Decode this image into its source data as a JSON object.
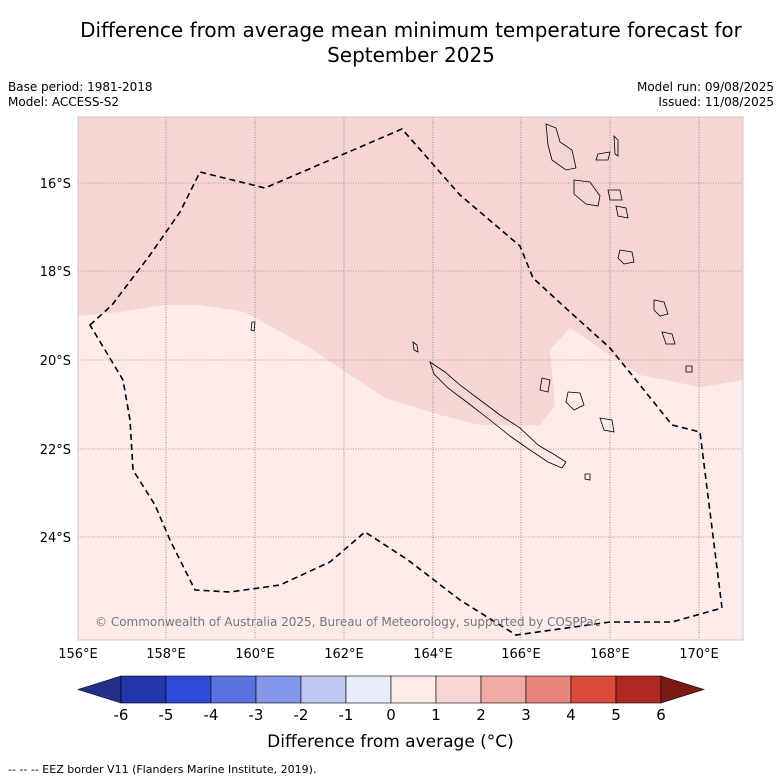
{
  "title": "Difference from average mean minimum temperature forecast for September 2025",
  "base_period": "Base period: 1981-2018",
  "model": "Model: ACCESS-S2",
  "model_run": "Model run: 09/08/2025",
  "issued": "Issued: 11/08/2025",
  "copyright": "© Commonwealth of Australia 2025, Bureau of Meteorology, supported by COSPPac",
  "map": {
    "lon_labels": [
      "156°E",
      "158°E",
      "160°E",
      "162°E",
      "164°E",
      "166°E",
      "168°E",
      "170°E"
    ],
    "lat_labels": [
      "16°S",
      "18°S",
      "20°S",
      "22°S",
      "24°S"
    ]
  },
  "colorbar": {
    "label": "Difference from average (°C)",
    "ticks": [
      "-6",
      "-5",
      "-4",
      "-3",
      "-2",
      "-1",
      "0",
      "1",
      "2",
      "3",
      "4",
      "5",
      "6"
    ],
    "colors": [
      "#1f2f8a",
      "#2336a9",
      "#2f4ad9",
      "#5a72e0",
      "#8597e8",
      "#bfc7f3",
      "#e8ecfb",
      "#fdebe8",
      "#f7d6d4",
      "#efaaa6",
      "#e8867e",
      "#dc4a3c",
      "#ad2922",
      "#7a1a17"
    ]
  },
  "footer": "--  --  -- EEZ border V11 (Flanders Marine Institute, 2019)."
}
